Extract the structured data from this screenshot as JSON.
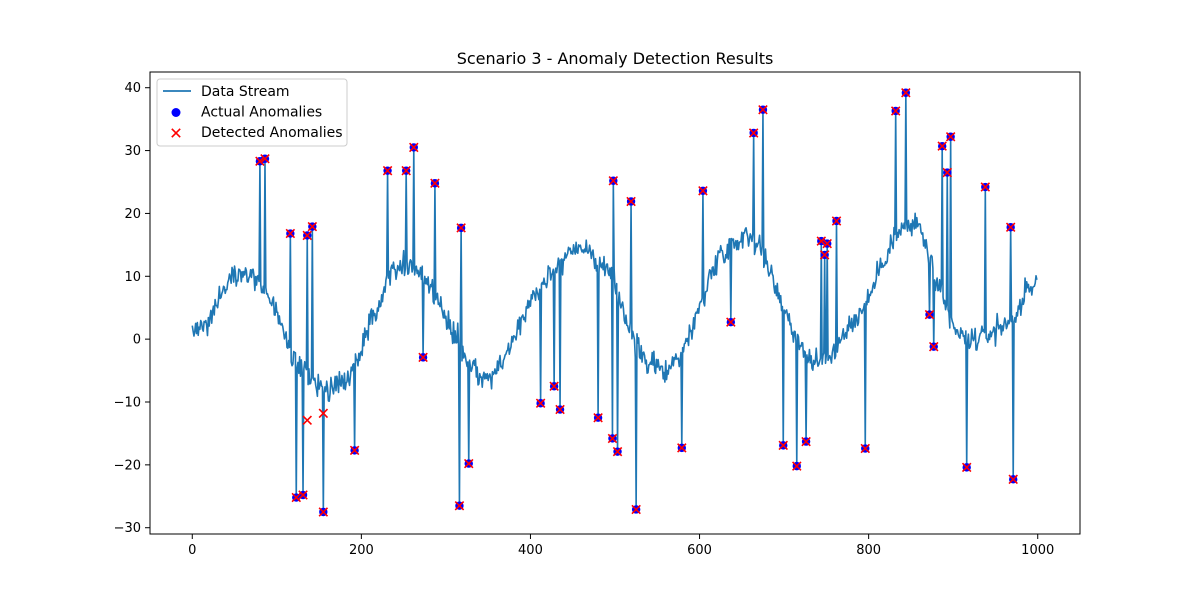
{
  "chart_data": {
    "type": "line",
    "title": "Scenario 3 - Anomaly Detection Results",
    "xlabel": "",
    "ylabel": "",
    "xlim": [
      -50,
      1050
    ],
    "ylim": [
      -31,
      42.5
    ],
    "xticks": [
      0,
      200,
      400,
      600,
      800,
      1000
    ],
    "yticks": [
      -30,
      -20,
      -10,
      0,
      10,
      20,
      30,
      40
    ],
    "grid": false,
    "legend_position": "top-left",
    "colors": {
      "line": "#1f77b4",
      "actual": "#0000ff",
      "detected": "#ff0000"
    },
    "legend": [
      {
        "label": "Data Stream",
        "kind": "line"
      },
      {
        "label": "Actual Anomalies",
        "kind": "dot"
      },
      {
        "label": "Detected Anomalies",
        "kind": "x"
      }
    ],
    "baseline": {
      "x": [
        0,
        20,
        40,
        55,
        70,
        85,
        100,
        115,
        130,
        145,
        160,
        175,
        190,
        205,
        220,
        235,
        250,
        265,
        275,
        290,
        310,
        325,
        340,
        355,
        365,
        380,
        395,
        410,
        420,
        440,
        455,
        470,
        480,
        495,
        510,
        520,
        540,
        560,
        580,
        595,
        610,
        625,
        640,
        655,
        670,
        685,
        700,
        715,
        730,
        740,
        755,
        770,
        790,
        805,
        815,
        830,
        845,
        860,
        870,
        880,
        895,
        905,
        915,
        930,
        945,
        955,
        970,
        985,
        1000
      ],
      "y": [
        1,
        3,
        9,
        11,
        10,
        8,
        4,
        -2,
        -5,
        -7,
        -8,
        -7,
        -5,
        0,
        6,
        11,
        12,
        11,
        10,
        6,
        1,
        -3,
        -6,
        -6,
        -4,
        0,
        5,
        8,
        10,
        13,
        15,
        14,
        12,
        10,
        5,
        0,
        -4,
        -5,
        -2,
        3,
        9,
        14,
        15,
        17,
        15,
        10,
        5,
        0,
        -3,
        -4,
        -3,
        1,
        4,
        8,
        12,
        16,
        18,
        18,
        14,
        9,
        3,
        1,
        0,
        0,
        1,
        2,
        3,
        7,
        9
      ]
    },
    "anomalies": {
      "x": [
        80,
        86,
        116,
        123,
        131,
        136,
        142,
        155,
        192,
        231,
        253,
        262,
        273,
        287,
        316,
        318,
        327,
        412,
        428,
        435,
        480,
        497,
        498,
        503,
        519,
        525,
        579,
        604,
        637,
        664,
        675,
        699,
        715,
        726,
        744,
        748,
        751,
        762,
        796,
        832,
        844,
        872,
        877,
        887,
        893,
        897,
        916,
        938,
        968,
        971
      ],
      "y": [
        28.3,
        28.7,
        16.8,
        -25.2,
        -24.8,
        16.5,
        17.9,
        -27.5,
        -17.7,
        26.8,
        26.8,
        30.5,
        -2.9,
        24.8,
        -26.5,
        17.7,
        -19.8,
        -10.2,
        -7.5,
        -11.2,
        -12.5,
        -15.8,
        25.2,
        -17.9,
        21.9,
        -27.1,
        -17.3,
        23.6,
        2.7,
        32.8,
        36.5,
        -16.9,
        -20.2,
        -16.3,
        15.6,
        13.4,
        15.2,
        18.8,
        -17.4,
        36.3,
        39.2,
        3.9,
        -1.2,
        30.7,
        26.5,
        32.2,
        -20.4,
        24.2,
        17.8,
        -22.3
      ]
    },
    "false_detections": {
      "x": [
        136,
        155
      ],
      "y": [
        -12.9,
        -11.8
      ]
    }
  }
}
